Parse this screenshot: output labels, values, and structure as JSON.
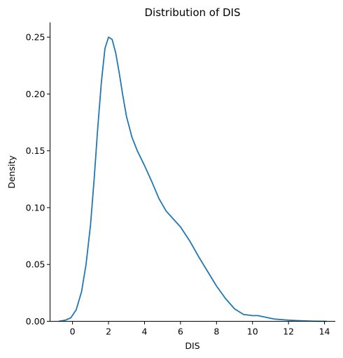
{
  "chart_data": {
    "type": "line",
    "title": "Distribution of DIS",
    "xlabel": "DIS",
    "ylabel": "Density",
    "xlim": [
      -1.25,
      14.6
    ],
    "ylim": [
      0,
      0.263
    ],
    "xticks": [
      0,
      2,
      4,
      6,
      8,
      10,
      12,
      14
    ],
    "xtick_labels": [
      "0",
      "2",
      "4",
      "6",
      "8",
      "10",
      "12",
      "14"
    ],
    "yticks": [
      0.0,
      0.05,
      0.1,
      0.15,
      0.2,
      0.25
    ],
    "ytick_labels": [
      "0.00",
      "0.05",
      "0.10",
      "0.15",
      "0.20",
      "0.25"
    ],
    "grid": false,
    "series": [
      {
        "color": "#1f77b4",
        "x": [
          -0.75,
          -0.4,
          -0.1,
          0.2,
          0.5,
          0.75,
          1.0,
          1.2,
          1.4,
          1.6,
          1.8,
          2.0,
          2.2,
          2.4,
          2.6,
          2.8,
          3.0,
          3.3,
          3.6,
          4.0,
          4.4,
          4.8,
          5.2,
          5.6,
          6.0,
          6.5,
          7.0,
          7.5,
          8.0,
          8.5,
          9.0,
          9.5,
          10.0,
          10.3,
          10.6,
          10.9,
          11.2,
          11.6,
          12.0,
          12.5,
          13.0,
          13.5,
          14.1
        ],
        "y": [
          0.0,
          0.001,
          0.003,
          0.01,
          0.026,
          0.05,
          0.085,
          0.125,
          0.17,
          0.21,
          0.24,
          0.25,
          0.248,
          0.236,
          0.218,
          0.198,
          0.18,
          0.162,
          0.15,
          0.137,
          0.123,
          0.108,
          0.097,
          0.09,
          0.083,
          0.071,
          0.057,
          0.044,
          0.031,
          0.02,
          0.011,
          0.006,
          0.005,
          0.005,
          0.004,
          0.003,
          0.002,
          0.0015,
          0.001,
          0.0006,
          0.0003,
          0.0001,
          0.0
        ]
      }
    ]
  }
}
